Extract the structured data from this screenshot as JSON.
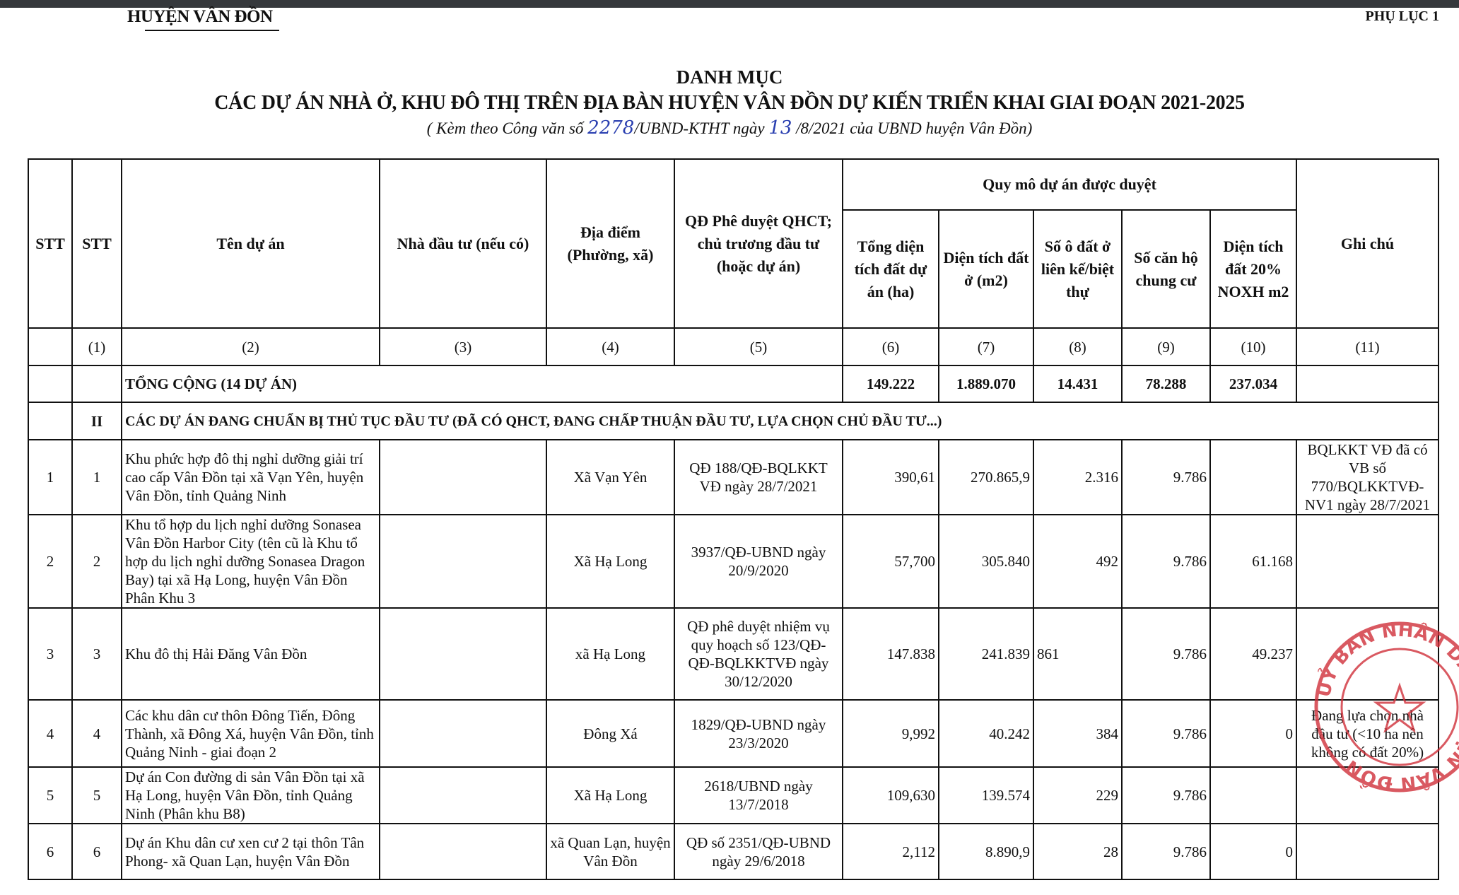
{
  "header": {
    "organization": "HUYỆN VÂN ĐỒN",
    "annex": "PHỤ LỤC 1",
    "title_line1": "DANH MỤC",
    "title_line2": "CÁC DỰ ÁN NHÀ Ở, KHU ĐÔ THỊ TRÊN ĐỊA BÀN HUYỆN VÂN ĐỒN DỰ KIẾN TRIỂN KHAI GIAI ĐOẠN 2021-2025",
    "subtitle_pre": "( Kèm theo Công văn số ",
    "subtitle_handwritten_no": "2278",
    "subtitle_mid": "/UBND-KTHT ngày ",
    "subtitle_handwritten_day": "13",
    "subtitle_post": " /8/2021 của UBND huyện Vân Đồn)"
  },
  "table": {
    "headers": {
      "stt1": "STT",
      "stt2": "STT",
      "name": "Tên dự án",
      "investor": "Nhà đầu tư (nếu có)",
      "location": "Địa điểm (Phường, xã)",
      "decision": "QĐ Phê duyệt QHCT; chủ trương đầu tư (hoặc dự án)",
      "group": "Quy mô dự án được duyệt",
      "total_area": "Tổng diện tích đất dự án (ha)",
      "res_area": "Diện tích đất ở (m2)",
      "plots": "Số ô đất ở liên kế/biệt thự",
      "apartments": "Số căn hộ chung cư",
      "social_area": "Diện tích đất 20% NOXH m2",
      "note": "Ghi chú"
    },
    "col_numbers": [
      "(1)",
      "(2)",
      "(3)",
      "(4)",
      "(5)",
      "(6)",
      "(7)",
      "(8)",
      "(9)",
      "(10)",
      "(11)"
    ],
    "total": {
      "label": "TỔNG CỘNG (14 DỰ ÁN)",
      "total_area": "149.222",
      "res_area": "1.889.070",
      "plots": "14.431",
      "apartments": "78.288",
      "social_area": "237.034"
    },
    "section": {
      "code": "II",
      "label": "CÁC DỰ ÁN ĐANG CHUẨN BỊ THỦ TỤC ĐẦU TƯ (ĐÃ CÓ QHCT, ĐANG CHẤP THUẬN ĐẦU TƯ, LỰA CHỌN CHỦ ĐẦU TƯ...)"
    },
    "rows": [
      {
        "stt1": "1",
        "stt2": "1",
        "name": "Khu phức hợp đô thị nghỉ dưỡng giải trí cao cấp Vân Đồn tại xã Vạn Yên, huyện Vân Đồn, tỉnh Quảng Ninh",
        "investor": "",
        "location": "Xã Vạn Yên",
        "decision": "QĐ 188/QĐ-BQLKKT VĐ ngày 28/7/2021",
        "total_area": "390,61",
        "res_area": "270.865,9",
        "plots": "2.316",
        "apartments": "9.786",
        "social_area": "",
        "note": "BQLKKT VĐ đã có VB số 770/BQLKKTVĐ-NV1 ngày 28/7/2021"
      },
      {
        "stt1": "2",
        "stt2": "2",
        "name": "Khu tổ hợp du lịch nghỉ dưỡng Sonasea Vân Đồn Harbor City (tên cũ là Khu tổ hợp du lịch nghỉ dưỡng Sonasea Dragon Bay) tại xã Hạ Long, huyện Vân Đồn Phân Khu 3",
        "investor": "",
        "location": "Xã Hạ Long",
        "decision": "3937/QĐ-UBND ngày 20/9/2020",
        "total_area": "57,700",
        "res_area": "305.840",
        "plots": "492",
        "apartments": "9.786",
        "social_area": "61.168",
        "note": ""
      },
      {
        "stt1": "3",
        "stt2": "3",
        "name": "Khu đô thị Hải Đăng Vân Đồn",
        "investor": "",
        "location": "xã Hạ Long",
        "decision": "QĐ phê duyệt nhiệm vụ quy hoạch số 123/QĐ-QĐ-BQLKKTVĐ ngày 30/12/2020",
        "total_area": "147.838",
        "res_area": "241.839",
        "plots": "861",
        "apartments": "9.786",
        "social_area": "49.237",
        "note": ""
      },
      {
        "stt1": "4",
        "stt2": "4",
        "name": "Các khu dân cư thôn Đông Tiến, Đông Thành, xã Đông Xá, huyện Vân Đồn, tỉnh Quảng Ninh - giai đoạn 2",
        "investor": "",
        "location": "Đông Xá",
        "decision": "1829/QĐ-UBND ngày 23/3/2020",
        "total_area": "9,992",
        "res_area": "40.242",
        "plots": "384",
        "apartments": "9.786",
        "social_area": "0",
        "note": "Đang lựa chọn nhà đầu tư (<10 ha nên không có đất 20%)"
      },
      {
        "stt1": "5",
        "stt2": "5",
        "name": "Dự án Con đường di sản Vân Đồn tại xã Hạ Long, huyện Vân Đồn, tỉnh Quảng Ninh (Phân khu B8)",
        "investor": "",
        "location": "Xã Hạ Long",
        "decision": "2618/UBND ngày 13/7/2018",
        "total_area": "109,630",
        "res_area": "139.574",
        "plots": "229",
        "apartments": "9.786",
        "social_area": "",
        "note": ""
      },
      {
        "stt1": "6",
        "stt2": "6",
        "name": "Dự án Khu dân cư xen cư 2 tại thôn Tân Phong- xã Quan Lạn, huyện Vân Đồn",
        "investor": "",
        "location": "xã Quan Lạn, huyện Vân Đồn",
        "decision": "QĐ số 2351/QĐ-UBND ngày 29/6/2018",
        "total_area": "2,112",
        "res_area": "8.890,9",
        "plots": "28",
        "apartments": "9.786",
        "social_area": "0",
        "note": ""
      }
    ]
  },
  "stamp": {
    "text": "UỶ BAN NHÂN DÂN HUYỆN VÂN ĐỒN",
    "color": "#d0303a"
  },
  "colors": {
    "topbar": "#35383c",
    "handwriting": "#2a3fb0"
  }
}
